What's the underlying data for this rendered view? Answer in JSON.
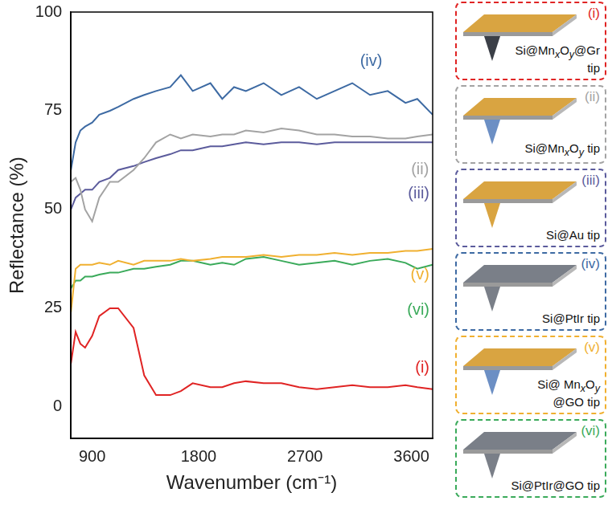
{
  "chart_data": {
    "type": "line",
    "x_label": "Wavenumber (cm⁻¹)",
    "y_label": "Reflectance (%)",
    "xlim": [
      720,
      3780
    ],
    "xticks": [
      900,
      1800,
      2700,
      3600
    ],
    "ylim": [
      -8,
      100
    ],
    "yticks": [
      0,
      25,
      50,
      75,
      100
    ],
    "grid": false,
    "x": [
      720,
      760,
      800,
      840,
      900,
      960,
      1050,
      1120,
      1250,
      1340,
      1440,
      1560,
      1650,
      1750,
      1900,
      2000,
      2100,
      2200,
      2350,
      2500,
      2650,
      2800,
      2950,
      3100,
      3250,
      3400,
      3550,
      3650,
      3780
    ],
    "series": [
      {
        "name": "(i)",
        "tip": "Si@MnxOy@Gr tip",
        "color": "#e02424",
        "values": [
          11,
          19,
          16,
          15,
          18,
          23,
          25,
          25,
          20,
          8,
          3,
          3,
          4,
          6,
          5,
          5,
          6,
          6.5,
          6,
          6,
          5,
          4.5,
          5,
          5.5,
          5,
          5,
          5.5,
          5,
          4.5
        ]
      },
      {
        "name": "(ii)",
        "tip": "Si@MnxOy tip",
        "color": "#a3a3a3",
        "values": [
          57,
          58,
          55,
          50,
          47,
          53,
          57,
          57,
          60,
          63,
          67,
          69,
          68,
          69,
          68.5,
          69,
          69,
          70,
          69.5,
          70.5,
          70,
          69,
          69,
          68.5,
          68.5,
          68,
          68,
          68.5,
          69
        ]
      },
      {
        "name": "(iii)",
        "tip": "Si@Au tip",
        "color": "#5b5b9c",
        "values": [
          50,
          53,
          54,
          55,
          55,
          57,
          58,
          60,
          61,
          62,
          63,
          64,
          65,
          65,
          66,
          66,
          66.5,
          67,
          66.5,
          67,
          67,
          66.5,
          67,
          67,
          67,
          67,
          67,
          67,
          67
        ]
      },
      {
        "name": "(iv)",
        "tip": "Si@PtIr tip",
        "color": "#3d6aa3",
        "values": [
          60,
          67,
          70,
          71,
          72,
          74,
          75,
          76,
          78,
          79,
          80,
          81,
          84,
          80,
          82,
          78,
          81,
          80,
          82,
          79,
          81,
          78,
          80,
          82,
          79,
          80,
          77,
          78,
          74
        ]
      },
      {
        "name": "(v)",
        "tip": "Si@ MnxOy @GO tip",
        "color": "#f0b030",
        "values": [
          24,
          35,
          36,
          36,
          36,
          36.5,
          36,
          37,
          36,
          37,
          37,
          37,
          37.5,
          37,
          37.5,
          38,
          38,
          38,
          38.5,
          38,
          38.5,
          38.5,
          39,
          38.5,
          39,
          39,
          39.5,
          39.5,
          40
        ]
      },
      {
        "name": "(vi)",
        "tip": "Si@PtIr@GO tip",
        "color": "#3aaa5a",
        "values": [
          30,
          32,
          32,
          33,
          33,
          33.5,
          34,
          34,
          35,
          35,
          35.5,
          36,
          37,
          37,
          36,
          36.5,
          36,
          37.5,
          38,
          37,
          36,
          36.5,
          37,
          36,
          37,
          37.5,
          36.5,
          35,
          36
        ]
      }
    ]
  }
}
